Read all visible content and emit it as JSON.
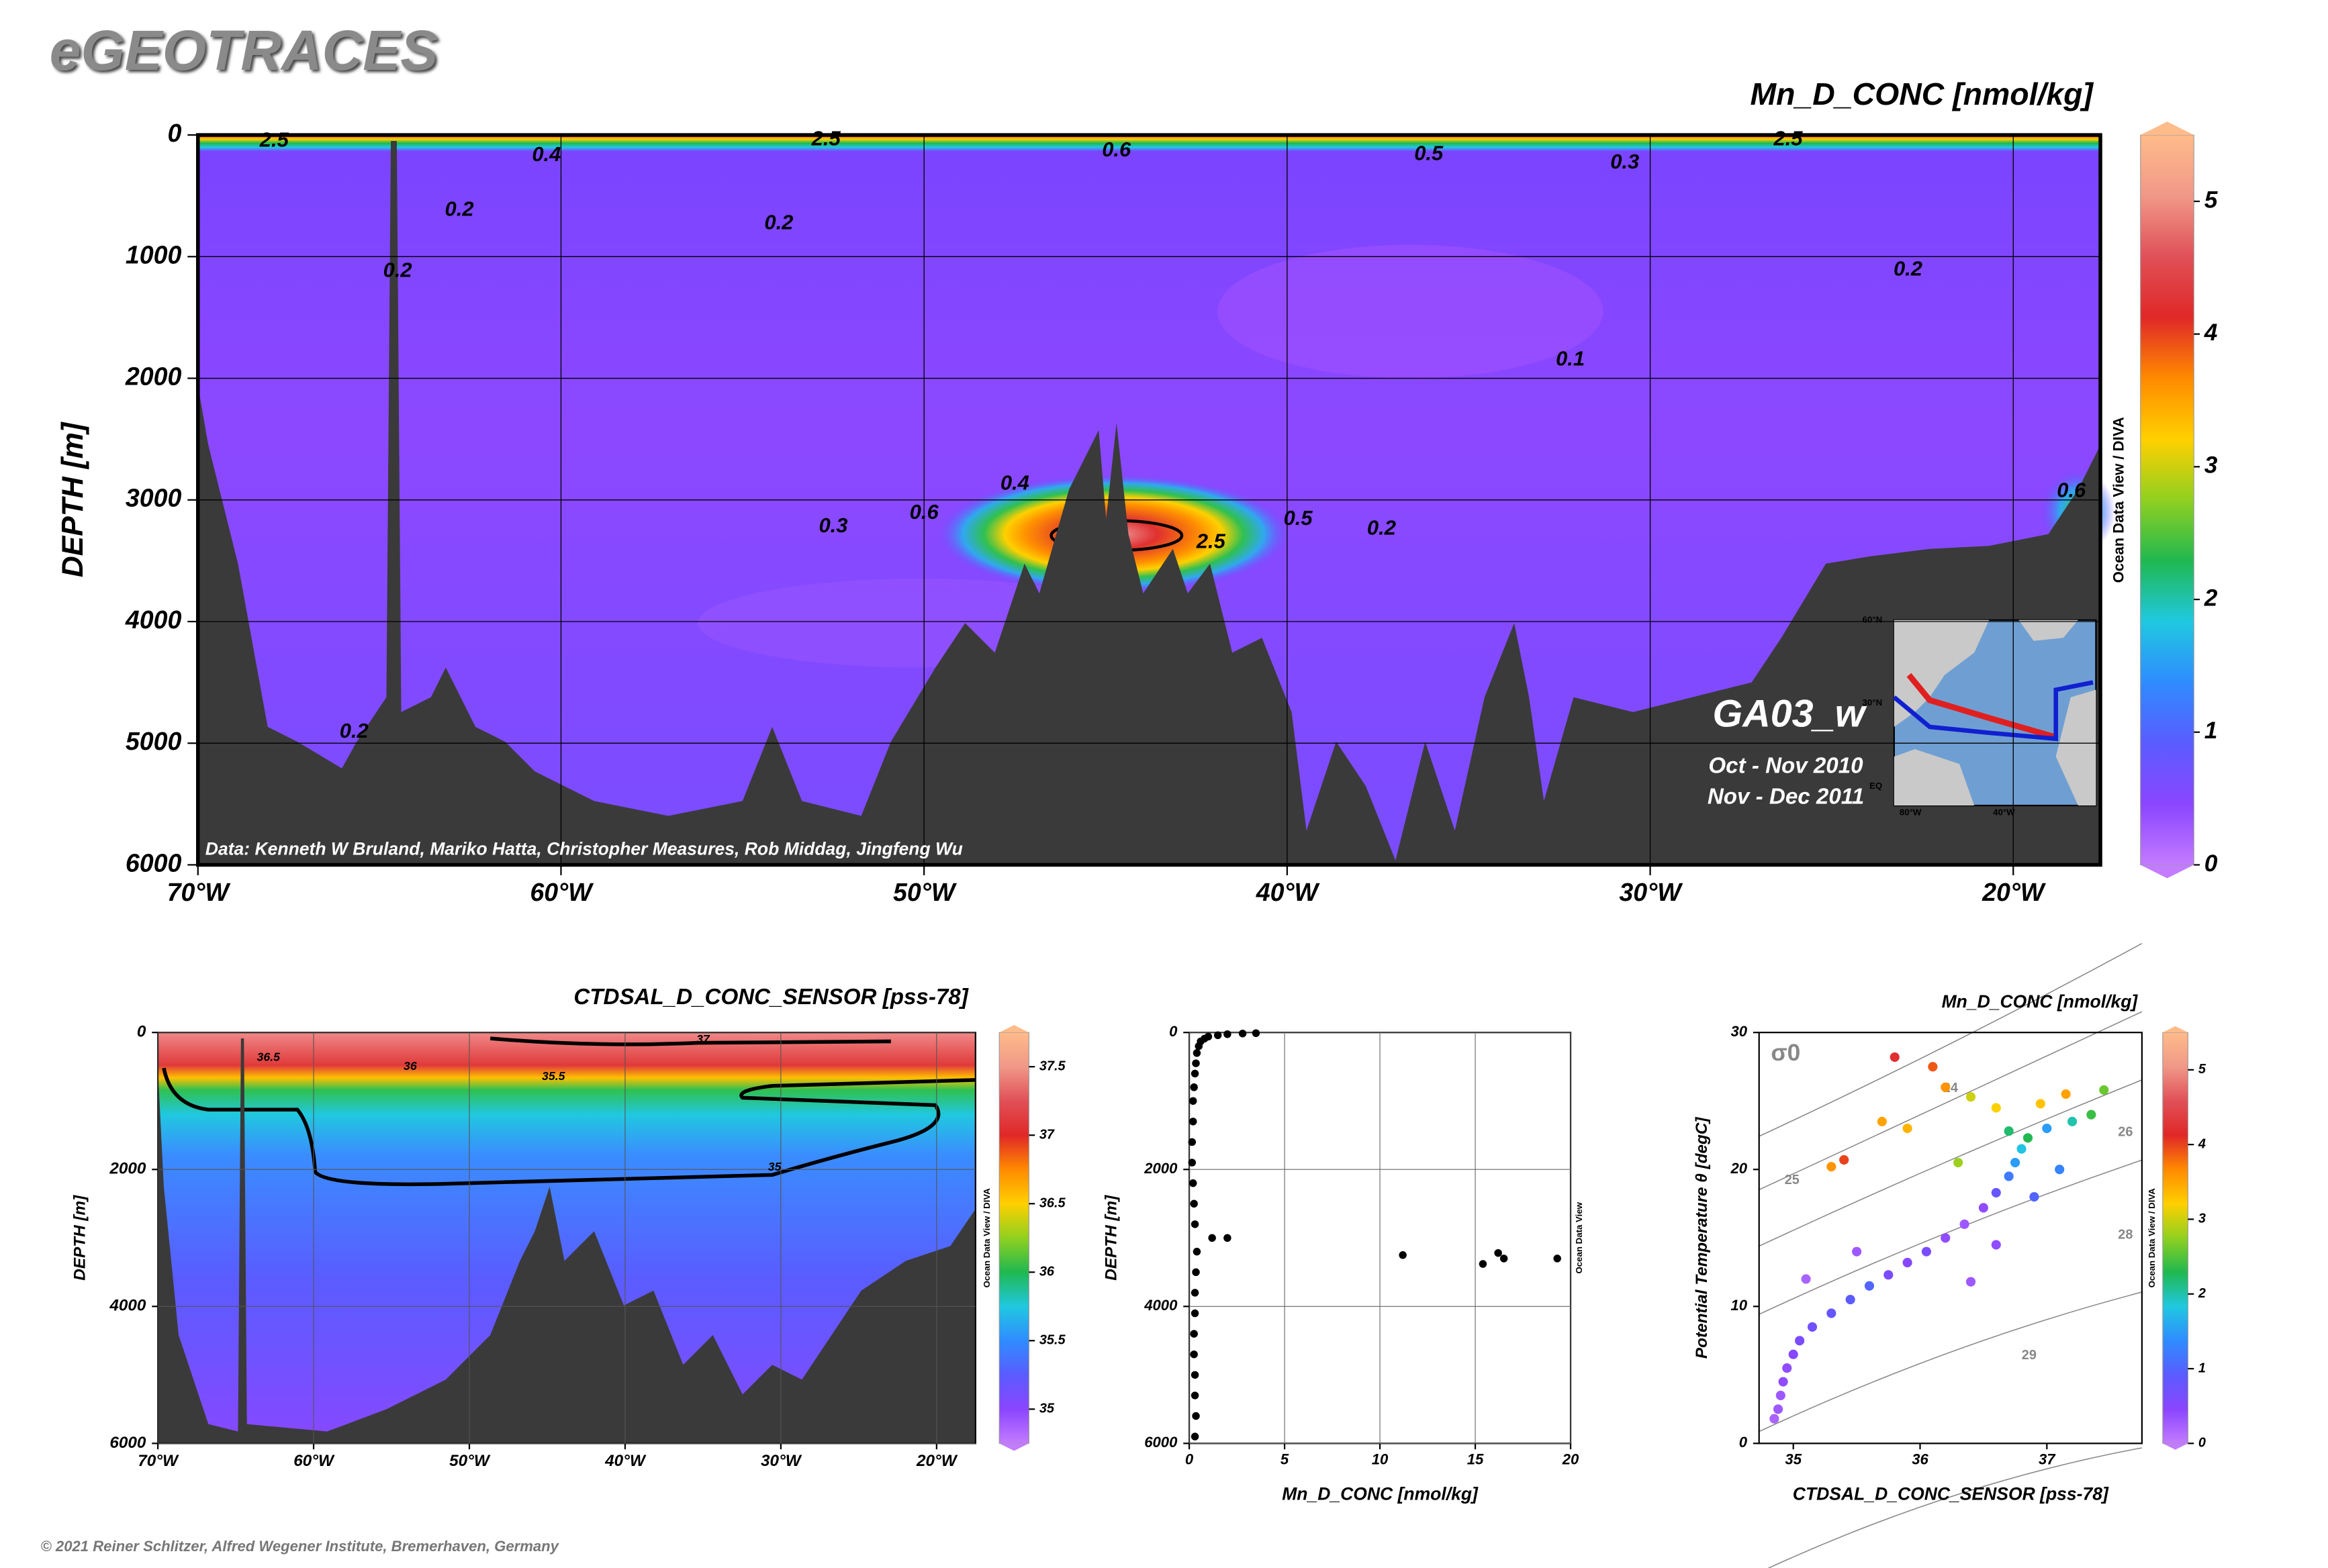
{
  "header": {
    "title": "eGEOTRACES"
  },
  "footer": "© 2021 Reiner Schlitzer, Alfred Wegener Institute, Bremerhaven, Germany",
  "colormap": [
    "#c37bff",
    "#8a45ff",
    "#5a5cff",
    "#2f8cff",
    "#20c8e0",
    "#20b850",
    "#90d020",
    "#ffd000",
    "#ff8a00",
    "#e02828",
    "#e05058",
    "#f09888",
    "#ffbb8a"
  ],
  "chart_data": [
    {
      "type": "section",
      "title": "Mn_D_CONC [nmol/kg]",
      "ylabel": "DEPTH [m]",
      "xlim": [
        -70,
        -17.6
      ],
      "xticks": [
        {
          "value": -70,
          "label": "70°W"
        },
        {
          "value": -60,
          "label": "60°W"
        },
        {
          "value": -50,
          "label": "50°W"
        },
        {
          "value": -40,
          "label": "40°W"
        },
        {
          "value": -30,
          "label": "30°W"
        },
        {
          "value": -20,
          "label": "20°W"
        }
      ],
      "ylim": [
        0,
        6000
      ],
      "y_inverted": true,
      "yticks": [
        0,
        1000,
        2000,
        3000,
        4000,
        5000,
        6000
      ],
      "grid": true,
      "colorbar": {
        "zlim": [
          0,
          5.5
        ],
        "zticks": [
          0,
          1,
          2,
          3,
          4,
          5
        ]
      },
      "contour_labels": [
        {
          "text": "2.5",
          "x": -67.9,
          "y": 50
        },
        {
          "text": "0.4",
          "x": -60.4,
          "y": 170
        },
        {
          "text": "2.5",
          "x": -52.7,
          "y": 40
        },
        {
          "text": "0.6",
          "x": -44.7,
          "y": 130
        },
        {
          "text": "0.5",
          "x": -36.1,
          "y": 160
        },
        {
          "text": "0.3",
          "x": -30.7,
          "y": 230
        },
        {
          "text": "2.5",
          "x": -26.2,
          "y": 40
        },
        {
          "text": "0.2",
          "x": -62.8,
          "y": 620
        },
        {
          "text": "0.2",
          "x": -54.0,
          "y": 730
        },
        {
          "text": "0.2",
          "x": -64.5,
          "y": 1120
        },
        {
          "text": "0.2",
          "x": -22.9,
          "y": 1110
        },
        {
          "text": "0.1",
          "x": -32.2,
          "y": 1850
        },
        {
          "text": "0.4",
          "x": -47.5,
          "y": 2870
        },
        {
          "text": "0.6",
          "x": -50.0,
          "y": 3110
        },
        {
          "text": "0.3",
          "x": -52.5,
          "y": 3220
        },
        {
          "text": "0.5",
          "x": -39.7,
          "y": 3160
        },
        {
          "text": "0.2",
          "x": -37.4,
          "y": 3240
        },
        {
          "text": "2.5",
          "x": -42.1,
          "y": 3350
        },
        {
          "text": "0.6",
          "x": -18.4,
          "y": 2930
        },
        {
          "text": "0.2",
          "x": -65.7,
          "y": 4910
        }
      ],
      "section_name": "GA03_w",
      "cruises": [
        "Oct - Nov 2010",
        "Nov - Dec 2011"
      ],
      "credit": "Data: Kenneth W Bruland, Mariko Hatta, Christopher Measures, Rob Middag, Jingfeng Wu",
      "software": "Ocean Data View / DIVA",
      "inset_labels": [
        "60°N",
        "30°N",
        "EQ",
        "80°W",
        "40°W"
      ]
    },
    {
      "type": "section",
      "title": "CTDSAL_D_CONC_SENSOR [pss-78]",
      "ylabel": "DEPTH [m]",
      "xlim": [
        -70,
        -17.5
      ],
      "xticks": [
        {
          "value": -70,
          "label": "70°W"
        },
        {
          "value": -60,
          "label": "60°W"
        },
        {
          "value": -50,
          "label": "50°W"
        },
        {
          "value": -40,
          "label": "40°W"
        },
        {
          "value": -30,
          "label": "30°W"
        },
        {
          "value": -20,
          "label": "20°W"
        }
      ],
      "ylim": [
        0,
        6000
      ],
      "y_inverted": true,
      "yticks": [
        0,
        2000,
        4000,
        6000
      ],
      "grid": true,
      "colorbar": {
        "zlim": [
          34.75,
          37.75
        ],
        "zticks": [
          35,
          35.5,
          36,
          36.5,
          37,
          37.5
        ]
      },
      "contour_labels": [
        {
          "text": "36.5",
          "x": -62.9,
          "y": 370
        },
        {
          "text": "37",
          "x": -35.0,
          "y": 110
        },
        {
          "text": "36",
          "x": -53.8,
          "y": 500
        },
        {
          "text": "35.5",
          "x": -44.6,
          "y": 650
        },
        {
          "text": "35",
          "x": -30.4,
          "y": 1970
        }
      ],
      "software": "Ocean Data View / DIVA"
    },
    {
      "type": "scatter",
      "xlabel": "Mn_D_CONC [nmol/kg]",
      "ylabel": "DEPTH [m]",
      "xlim": [
        0,
        20
      ],
      "xticks": [
        0,
        5,
        10,
        15,
        20
      ],
      "ylim": [
        0,
        6000
      ],
      "y_inverted": true,
      "yticks": [
        0,
        2000,
        4000,
        6000
      ],
      "grid": true,
      "color": "#000000",
      "x": [
        3.5,
        2.8,
        2.0,
        1.5,
        1.0,
        0.8,
        0.6,
        0.5,
        0.4,
        0.35,
        0.3,
        0.25,
        0.2,
        0.2,
        0.15,
        0.15,
        0.2,
        0.25,
        0.3,
        1.2,
        2.0,
        11.2,
        15.4,
        16.2,
        16.5,
        19.3,
        0.4,
        0.35,
        0.3,
        0.3,
        0.25,
        0.25,
        0.3,
        0.3,
        0.35,
        0.3
      ],
      "y": [
        10,
        15,
        25,
        40,
        60,
        90,
        130,
        200,
        300,
        450,
        600,
        800,
        1000,
        1300,
        1600,
        1900,
        2200,
        2500,
        2800,
        3000,
        3000,
        3250,
        3380,
        3220,
        3300,
        3300,
        3200,
        3500,
        3800,
        4100,
        4400,
        4700,
        5000,
        5300,
        5600,
        5900
      ],
      "software": "Ocean Data View"
    },
    {
      "type": "scatter",
      "title": "Mn_D_CONC [nmol/kg]",
      "xlabel": "CTDSAL_D_CONC_SENSOR [pss-78]",
      "ylabel": "Potential Temperature θ [degC]",
      "xlim": [
        34.73,
        37.75
      ],
      "xticks": [
        35,
        36,
        37
      ],
      "ylim": [
        0,
        30
      ],
      "yticks": [
        0,
        10,
        20,
        30
      ],
      "grid": false,
      "x": [
        34.85,
        34.88,
        34.9,
        34.92,
        34.95,
        35.0,
        35.05,
        35.15,
        35.3,
        35.45,
        35.6,
        35.75,
        35.9,
        36.05,
        36.2,
        36.35,
        36.5,
        36.6,
        36.7,
        36.75,
        36.8,
        36.85,
        37.0,
        37.2,
        37.35,
        36.6,
        36.4,
        36.2,
        35.9,
        35.7,
        36.95,
        37.15,
        37.45,
        36.1,
        35.8,
        35.3,
        35.4,
        36.4,
        36.6,
        36.9,
        37.1,
        36.3,
        35.1,
        35.5,
        36.7
      ],
      "y": [
        1.8,
        2.5,
        3.5,
        4.5,
        5.5,
        6.5,
        7.5,
        8.5,
        9.5,
        10.5,
        11.5,
        12.3,
        13.2,
        14,
        15,
        16,
        17.2,
        18.3,
        19.5,
        20.5,
        21.5,
        22.3,
        23.0,
        23.5,
        24,
        24.5,
        25.3,
        26.0,
        23.0,
        23.5,
        24.8,
        25.5,
        25.8,
        27.5,
        28.2,
        20.2,
        20.7,
        11.8,
        14.5,
        18.0,
        20.0,
        20.5,
        12.0,
        14.0,
        22.8
      ],
      "z": [
        0.2,
        0.3,
        0.3,
        0.4,
        0.4,
        0.5,
        0.6,
        0.7,
        0.8,
        0.9,
        1.0,
        0.6,
        0.5,
        0.6,
        0.4,
        0.3,
        0.4,
        0.8,
        1.2,
        1.5,
        1.8,
        2.3,
        1.5,
        2.0,
        2.4,
        3.2,
        3.0,
        3.6,
        3.4,
        3.5,
        3.3,
        3.5,
        2.6,
        3.9,
        4.2,
        3.6,
        4.0,
        0.3,
        0.4,
        1.0,
        1.3,
        2.8,
        0.2,
        0.3,
        2.2
      ],
      "colorbar": {
        "zlim": [
          0,
          5.5
        ],
        "zticks": [
          0,
          1,
          2,
          3,
          4,
          5
        ]
      },
      "contour_labels": [
        {
          "text": "σ0",
          "x": 34.94,
          "y": 28.4
        },
        {
          "text": "24",
          "x": 36.24,
          "y": 25.9
        },
        {
          "text": "25",
          "x": 34.99,
          "y": 19.2
        },
        {
          "text": "26",
          "x": 37.62,
          "y": 22.7
        },
        {
          "text": "28",
          "x": 37.62,
          "y": 15.2
        },
        {
          "text": "29",
          "x": 36.86,
          "y": 6.4
        }
      ],
      "software": "Ocean Data View / DIVA"
    }
  ]
}
